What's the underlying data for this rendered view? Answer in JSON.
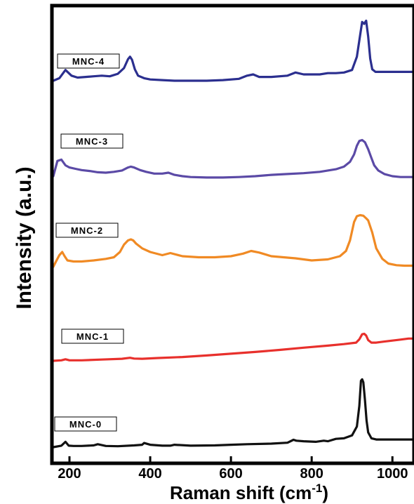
{
  "chart_data": {
    "type": "line",
    "xlabel": "Raman shift (cm",
    "xlabel_superscript": "-1",
    "xlabel_close": ")",
    "ylabel": "Intensity (a.u.)",
    "xlim": [
      160,
      1050
    ],
    "x_ticks": [
      200,
      400,
      600,
      800,
      1000
    ],
    "y_ticks_shown": false,
    "grid": false,
    "legend": "none",
    "series": [
      {
        "name": "MNC-4",
        "color": "#2b2f8f",
        "x": [
          160,
          175,
          190,
          205,
          220,
          240,
          260,
          280,
          300,
          320,
          335,
          345,
          350,
          355,
          362,
          370,
          385,
          400,
          430,
          460,
          500,
          540,
          580,
          620,
          640,
          655,
          670,
          700,
          740,
          760,
          780,
          800,
          820,
          840,
          860,
          880,
          900,
          912,
          920,
          925,
          930,
          935,
          940,
          945,
          950,
          958,
          970,
          990,
          1010,
          1030,
          1050
        ],
        "y": [
          0.0,
          0.04,
          0.17,
          0.08,
          0.05,
          0.06,
          0.07,
          0.08,
          0.07,
          0.11,
          0.2,
          0.34,
          0.38,
          0.33,
          0.18,
          0.08,
          0.04,
          0.02,
          0.01,
          0.0,
          0.0,
          0.0,
          0.01,
          0.03,
          0.08,
          0.1,
          0.06,
          0.06,
          0.08,
          0.13,
          0.1,
          0.1,
          0.1,
          0.12,
          0.12,
          0.13,
          0.17,
          0.38,
          0.72,
          0.93,
          0.9,
          0.95,
          0.7,
          0.35,
          0.18,
          0.14,
          0.14,
          0.14,
          0.14,
          0.14,
          0.14
        ]
      },
      {
        "name": "MNC-3",
        "color": "#5b4aa6",
        "x": [
          160,
          170,
          180,
          190,
          200,
          215,
          230,
          250,
          270,
          290,
          310,
          330,
          345,
          352,
          360,
          375,
          390,
          410,
          430,
          445,
          460,
          480,
          500,
          540,
          580,
          620,
          660,
          700,
          740,
          780,
          820,
          860,
          880,
          895,
          905,
          912,
          918,
          925,
          932,
          940,
          948,
          955,
          965,
          980,
          1000,
          1020,
          1050
        ],
        "y": [
          0.0,
          0.35,
          0.38,
          0.25,
          0.2,
          0.17,
          0.14,
          0.12,
          0.09,
          0.08,
          0.1,
          0.13,
          0.2,
          0.22,
          0.2,
          0.14,
          0.1,
          0.06,
          0.06,
          0.08,
          0.03,
          0.0,
          -0.02,
          -0.03,
          -0.03,
          -0.02,
          0.0,
          0.03,
          0.05,
          0.07,
          0.1,
          0.16,
          0.22,
          0.33,
          0.5,
          0.7,
          0.81,
          0.83,
          0.78,
          0.62,
          0.42,
          0.25,
          0.13,
          0.05,
          0.0,
          -0.02,
          -0.02
        ]
      },
      {
        "name": "MNC-2",
        "color": "#f08a24",
        "x": [
          160,
          168,
          175,
          182,
          188,
          195,
          210,
          230,
          260,
          290,
          310,
          325,
          335,
          345,
          352,
          358,
          365,
          380,
          400,
          430,
          450,
          480,
          520,
          560,
          600,
          630,
          650,
          670,
          700,
          730,
          760,
          800,
          840,
          870,
          885,
          895,
          905,
          912,
          920,
          928,
          935,
          940,
          950,
          960,
          975,
          990,
          1010,
          1030,
          1050
        ],
        "y": [
          0.0,
          0.12,
          0.22,
          0.28,
          0.2,
          0.12,
          0.1,
          0.1,
          0.12,
          0.15,
          0.18,
          0.28,
          0.42,
          0.5,
          0.52,
          0.5,
          0.44,
          0.35,
          0.28,
          0.22,
          0.26,
          0.2,
          0.18,
          0.18,
          0.2,
          0.25,
          0.3,
          0.27,
          0.2,
          0.18,
          0.16,
          0.12,
          0.14,
          0.2,
          0.3,
          0.5,
          0.85,
          0.96,
          0.98,
          0.97,
          0.92,
          0.88,
          0.65,
          0.35,
          0.15,
          0.06,
          0.03,
          0.02,
          0.02
        ]
      },
      {
        "name": "MNC-1",
        "color": "#e8302c",
        "x": [
          160,
          180,
          190,
          200,
          230,
          280,
          330,
          350,
          360,
          380,
          420,
          480,
          540,
          600,
          660,
          720,
          780,
          840,
          880,
          910,
          918,
          925,
          930,
          935,
          940,
          948,
          960,
          980,
          1000,
          1020,
          1040,
          1050
        ],
        "y": [
          0.0,
          0.02,
          0.06,
          0.02,
          0.02,
          0.05,
          0.08,
          0.12,
          0.09,
          0.08,
          0.11,
          0.15,
          0.21,
          0.28,
          0.35,
          0.43,
          0.52,
          0.6,
          0.66,
          0.72,
          0.85,
          1.05,
          1.07,
          1.0,
          0.82,
          0.72,
          0.72,
          0.76,
          0.8,
          0.84,
          0.88,
          0.88
        ]
      },
      {
        "name": "MNC-0",
        "color": "#111111",
        "x": [
          160,
          180,
          190,
          198,
          210,
          230,
          260,
          270,
          290,
          320,
          360,
          380,
          385,
          400,
          430,
          450,
          460,
          500,
          560,
          600,
          640,
          700,
          740,
          755,
          762,
          780,
          810,
          830,
          840,
          860,
          880,
          900,
          912,
          918,
          922,
          925,
          928,
          932,
          936,
          940,
          948,
          960,
          1000,
          1050
        ],
        "y": [
          0.0,
          0.05,
          0.18,
          0.05,
          0.04,
          0.04,
          0.06,
          0.1,
          0.04,
          0.03,
          0.06,
          0.08,
          0.14,
          0.08,
          0.05,
          0.05,
          0.08,
          0.05,
          0.06,
          0.08,
          0.1,
          0.12,
          0.15,
          0.25,
          0.22,
          0.2,
          0.18,
          0.22,
          0.2,
          0.28,
          0.3,
          0.4,
          0.7,
          1.4,
          2.25,
          2.3,
          2.2,
          1.6,
          0.9,
          0.5,
          0.3,
          0.26,
          0.26,
          0.26
        ]
      }
    ]
  }
}
